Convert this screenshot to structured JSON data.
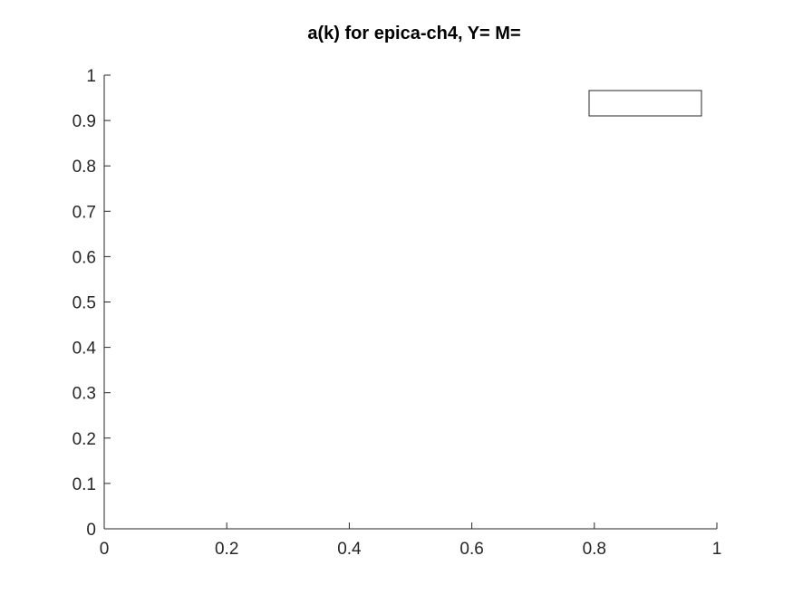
{
  "chart_data": {
    "type": "line",
    "title": "a(k) for epica-ch4, Y= M=",
    "xlabel": "",
    "ylabel": "",
    "xlim": [
      0,
      1
    ],
    "ylim": [
      0,
      1
    ],
    "x_ticks": [
      0,
      0.2,
      0.4,
      0.6,
      0.8,
      1
    ],
    "x_tick_labels": [
      "0",
      "0.2",
      "0.4",
      "0.6",
      "0.8",
      "1"
    ],
    "y_ticks": [
      0,
      0.1,
      0.2,
      0.3,
      0.4,
      0.5,
      0.6,
      0.7,
      0.8,
      0.9,
      1
    ],
    "y_tick_labels": [
      "0",
      "0.1",
      "0.2",
      "0.3",
      "0.4",
      "0.5",
      "0.6",
      "0.7",
      "0.8",
      "0.9",
      "1"
    ],
    "grid": false,
    "legend": {
      "placement": "top-right",
      "entries": []
    },
    "series": [],
    "colors": {
      "axis": "#262626",
      "title": "#000000",
      "background": "#ffffff"
    }
  }
}
